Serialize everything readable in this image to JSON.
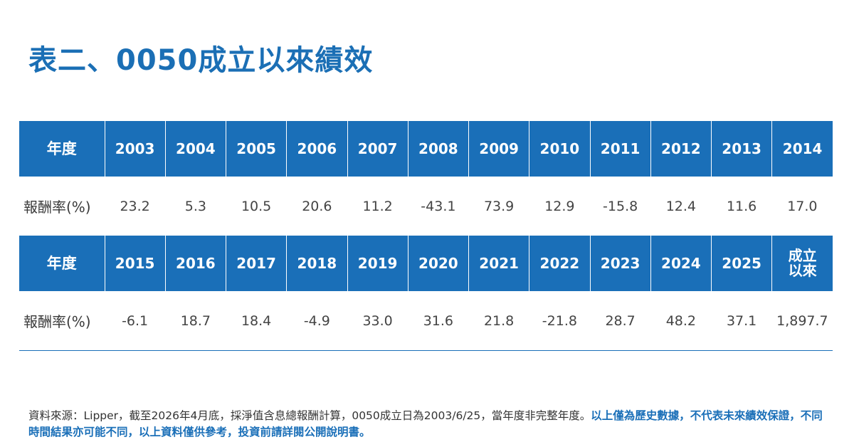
{
  "title": "表二、0050成立以來績效",
  "table": {
    "header_label": "年度",
    "row_label": "報酬率(%)",
    "rows": [
      {
        "years": [
          "2003",
          "2004",
          "2005",
          "2006",
          "2007",
          "2008",
          "2009",
          "2010",
          "2011",
          "2012",
          "2013",
          "2014"
        ],
        "returns": [
          "23.2",
          "5.3",
          "10.5",
          "20.6",
          "11.2",
          "-43.1",
          "73.9",
          "12.9",
          "-15.8",
          "12.4",
          "11.6",
          "17.0"
        ]
      },
      {
        "years": [
          "2015",
          "2016",
          "2017",
          "2018",
          "2019",
          "2020",
          "2021",
          "2022",
          "2023",
          "2024",
          "2025"
        ],
        "since_inception": [
          "成立",
          "以來"
        ],
        "returns": [
          "-6.1",
          "18.7",
          "18.4",
          "-4.9",
          "33.0",
          "31.6",
          "21.8",
          "-21.8",
          "28.7",
          "48.2",
          "37.1",
          "1,897.7"
        ]
      }
    ]
  },
  "footnote": {
    "source": "資料來源：Lipper，截至2026年4月底，採淨值含息總報酬計算，0050成立日為2003/6/25，當年度非完整年度。",
    "disclaimer": "以上僅為歷史數據，不代表未來績效保證，不同時間結果亦可能不同，以上資料僅供參考，投資前請詳閱公開說明書。"
  },
  "colors": {
    "accent": "#1a6fb8",
    "title": "#1b6fb5"
  }
}
